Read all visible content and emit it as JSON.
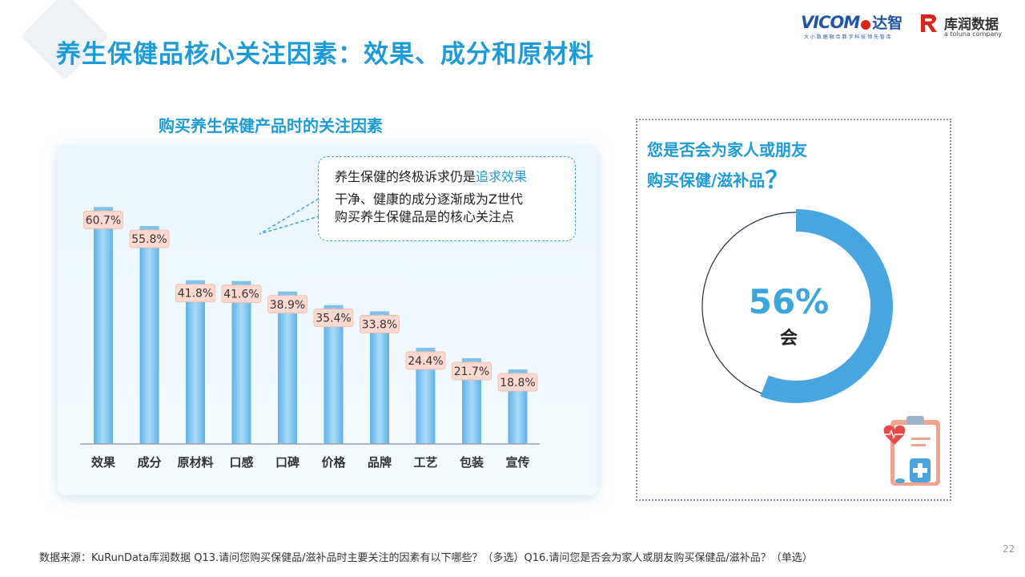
{
  "header": {
    "title": "养生保健品核心关注因素：效果、成分和原材料",
    "logo_vicom_word": "VICOM",
    "logo_vicom_cn": "达智",
    "logo_vicom_sub": "大 小 数 据 融 合    数 字 科 技 领 先 智 库",
    "logo_kurun_cn": "库润数据",
    "logo_kurun_sub": "a toluna company"
  },
  "colors": {
    "title": "#1e9bd7",
    "bar": "#7ec3ee",
    "label_bg": "#fbd9cf",
    "donut_fill": "#47a6df",
    "donut_track": "#1f2d3d"
  },
  "chart_title": "购买养生保健产品时的关注因素",
  "callout": {
    "line1_prefix": "养生保健的终极诉求仍是",
    "line1_highlight": "追求效果",
    "line2": "干净、健康的成分逐渐成为Z世代",
    "line3": "购买养生保健品是的核心关注点"
  },
  "chart_data": [
    {
      "type": "bar",
      "title": "购买养生保健产品时的关注因素",
      "categories": [
        "效果",
        "成分",
        "原材料",
        "口感",
        "口碑",
        "价格",
        "品牌",
        "工艺",
        "包装",
        "宣传"
      ],
      "values": [
        60.7,
        55.8,
        41.8,
        41.6,
        38.9,
        35.4,
        33.8,
        24.4,
        21.7,
        18.8
      ],
      "data_labels": [
        "60.7%",
        "55.8%",
        "41.8%",
        "41.6%",
        "38.9%",
        "35.4%",
        "33.8%",
        "24.4%",
        "21.7%",
        "18.8%"
      ],
      "unit": "%",
      "ylim": [
        0,
        62
      ],
      "grid": false
    },
    {
      "type": "pie",
      "title": "您是否会为家人或朋友购买保健/滋补品？",
      "categories": [
        "会"
      ],
      "values": [
        56
      ],
      "data_labels": [
        "56%"
      ]
    }
  ],
  "donut": {
    "question_line1": "您是否会为家人或朋友",
    "question_line2": "购买保健/滋补品",
    "question_mark": "？",
    "value_label": "56%",
    "category_label": "会",
    "value": 56
  },
  "footer": {
    "source": "数据来源：KuRunData库润数据 Q13.请问您购买保健品/滋补品时主要关注的因素有以下哪些？（多选）Q16.请问您是否会为家人或朋友购买保健品/滋补品？（单选）",
    "page_number": "22"
  }
}
